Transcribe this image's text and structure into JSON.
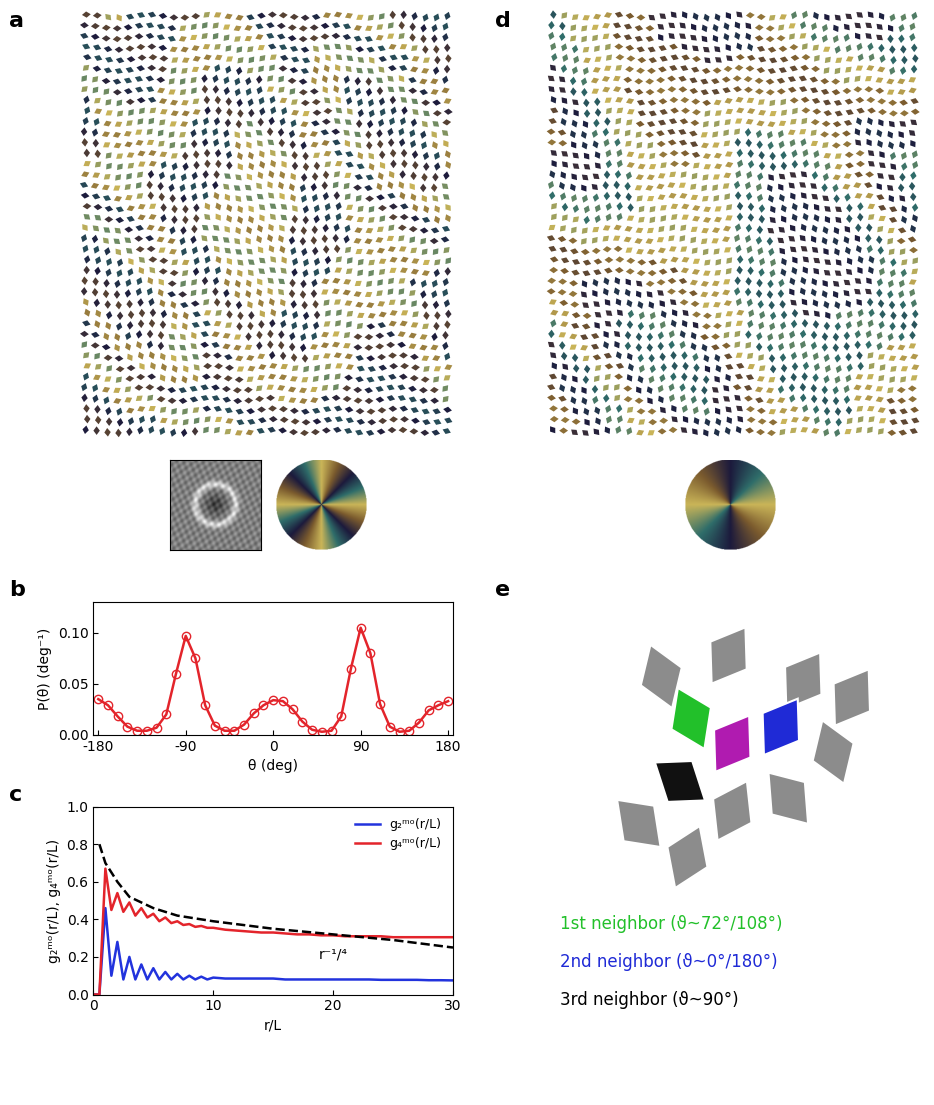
{
  "chart_data": [
    {
      "panel": "b",
      "type": "line",
      "xlabel": "θ (deg)",
      "ylabel": "P(θ) (deg⁻¹)",
      "x": [
        -180,
        -170,
        -160,
        -150,
        -140,
        -130,
        -120,
        -110,
        -100,
        -90,
        -80,
        -70,
        -60,
        -50,
        -40,
        -30,
        -20,
        -10,
        0,
        10,
        20,
        30,
        40,
        50,
        60,
        70,
        80,
        90,
        100,
        110,
        120,
        130,
        140,
        150,
        160,
        170,
        180
      ],
      "values": [
        0.035,
        0.029,
        0.018,
        0.008,
        0.004,
        0.004,
        0.007,
        0.02,
        0.06,
        0.097,
        0.075,
        0.029,
        0.009,
        0.004,
        0.004,
        0.01,
        0.021,
        0.029,
        0.034,
        0.033,
        0.025,
        0.013,
        0.005,
        0.003,
        0.004,
        0.018,
        0.065,
        0.105,
        0.08,
        0.03,
        0.008,
        0.003,
        0.004,
        0.012,
        0.024,
        0.029,
        0.033
      ],
      "color": "#e3242b",
      "marker": "o",
      "line_style": "solid",
      "xlim": [
        -185,
        185
      ],
      "xticks": [
        -180,
        -90,
        0,
        90,
        180
      ],
      "ylim": [
        0,
        0.13
      ],
      "yticks": [
        {
          "value": 0,
          "label": "0.00"
        },
        {
          "value": 0.05,
          "label": "0.05"
        },
        {
          "value": 0.1,
          "label": "0.10"
        }
      ]
    },
    {
      "panel": "c",
      "type": "line",
      "xlabel": "r/L",
      "ylabel": "g₂ᵐᵒ(r/L), g₄ᵐᵒ(r/L)",
      "x": [
        0,
        0.5,
        1,
        1.5,
        2,
        2.5,
        3,
        3.5,
        4,
        4.5,
        5,
        5.5,
        6,
        6.5,
        7,
        7.5,
        8,
        8.5,
        9,
        9.5,
        10,
        11,
        12,
        13,
        14,
        15,
        16,
        17,
        18,
        19,
        20,
        21,
        22,
        23,
        24,
        25,
        26,
        27,
        28,
        29,
        30
      ],
      "series": [
        {
          "name": "g₂ᵐᵒ(r/L)",
          "color": "#2233dd",
          "line_style": "solid",
          "values": [
            0,
            0,
            0.46,
            0.1,
            0.28,
            0.08,
            0.2,
            0.08,
            0.16,
            0.08,
            0.14,
            0.08,
            0.12,
            0.08,
            0.11,
            0.08,
            0.1,
            0.08,
            0.095,
            0.08,
            0.09,
            0.085,
            0.085,
            0.085,
            0.085,
            0.085,
            0.08,
            0.08,
            0.08,
            0.08,
            0.08,
            0.08,
            0.08,
            0.08,
            0.078,
            0.078,
            0.078,
            0.078,
            0.076,
            0.076,
            0.075
          ]
        },
        {
          "name": "g₄ᵐᵒ(r/L)",
          "color": "#e3242b",
          "line_style": "solid",
          "values": [
            0,
            0,
            0.67,
            0.45,
            0.54,
            0.44,
            0.49,
            0.42,
            0.46,
            0.41,
            0.43,
            0.39,
            0.41,
            0.38,
            0.39,
            0.37,
            0.375,
            0.36,
            0.365,
            0.355,
            0.355,
            0.345,
            0.34,
            0.335,
            0.33,
            0.33,
            0.325,
            0.32,
            0.32,
            0.315,
            0.315,
            0.31,
            0.31,
            0.31,
            0.31,
            0.305,
            0.305,
            0.305,
            0.305,
            0.305,
            0.305
          ]
        }
      ],
      "fit": {
        "label": "r⁻¹/⁴",
        "color": "#000000",
        "line_style": "dashed",
        "x": [
          0.5,
          1,
          2,
          3,
          5,
          7,
          10,
          15,
          20,
          25,
          30
        ],
        "values": [
          0.8,
          0.7,
          0.6,
          0.52,
          0.46,
          0.42,
          0.39,
          0.35,
          0.32,
          0.29,
          0.25
        ]
      },
      "legend": "upper right",
      "xlim": [
        0,
        30
      ],
      "xticks": [
        0,
        10,
        20,
        30
      ],
      "ylim": [
        0,
        1.0
      ],
      "yticks": [
        {
          "value": 0,
          "label": "0.0"
        },
        0.2,
        0.4,
        0.6,
        0.8,
        {
          "value": 1.0,
          "label": "1.0"
        }
      ]
    }
  ],
  "panel_labels": {
    "a": "a",
    "b": "b",
    "c": "c",
    "d": "d",
    "e": "e"
  },
  "diagram": {
    "legend": [
      {
        "text": "1st neighbor (ϑ~72°/108°)",
        "color": "#22c02a"
      },
      {
        "text": "2nd neighbor (ϑ~0°/180°)",
        "color": "#1f2ad6"
      },
      {
        "text": "3rd neighbor (ϑ~90°)",
        "color": "#000000"
      }
    ]
  }
}
